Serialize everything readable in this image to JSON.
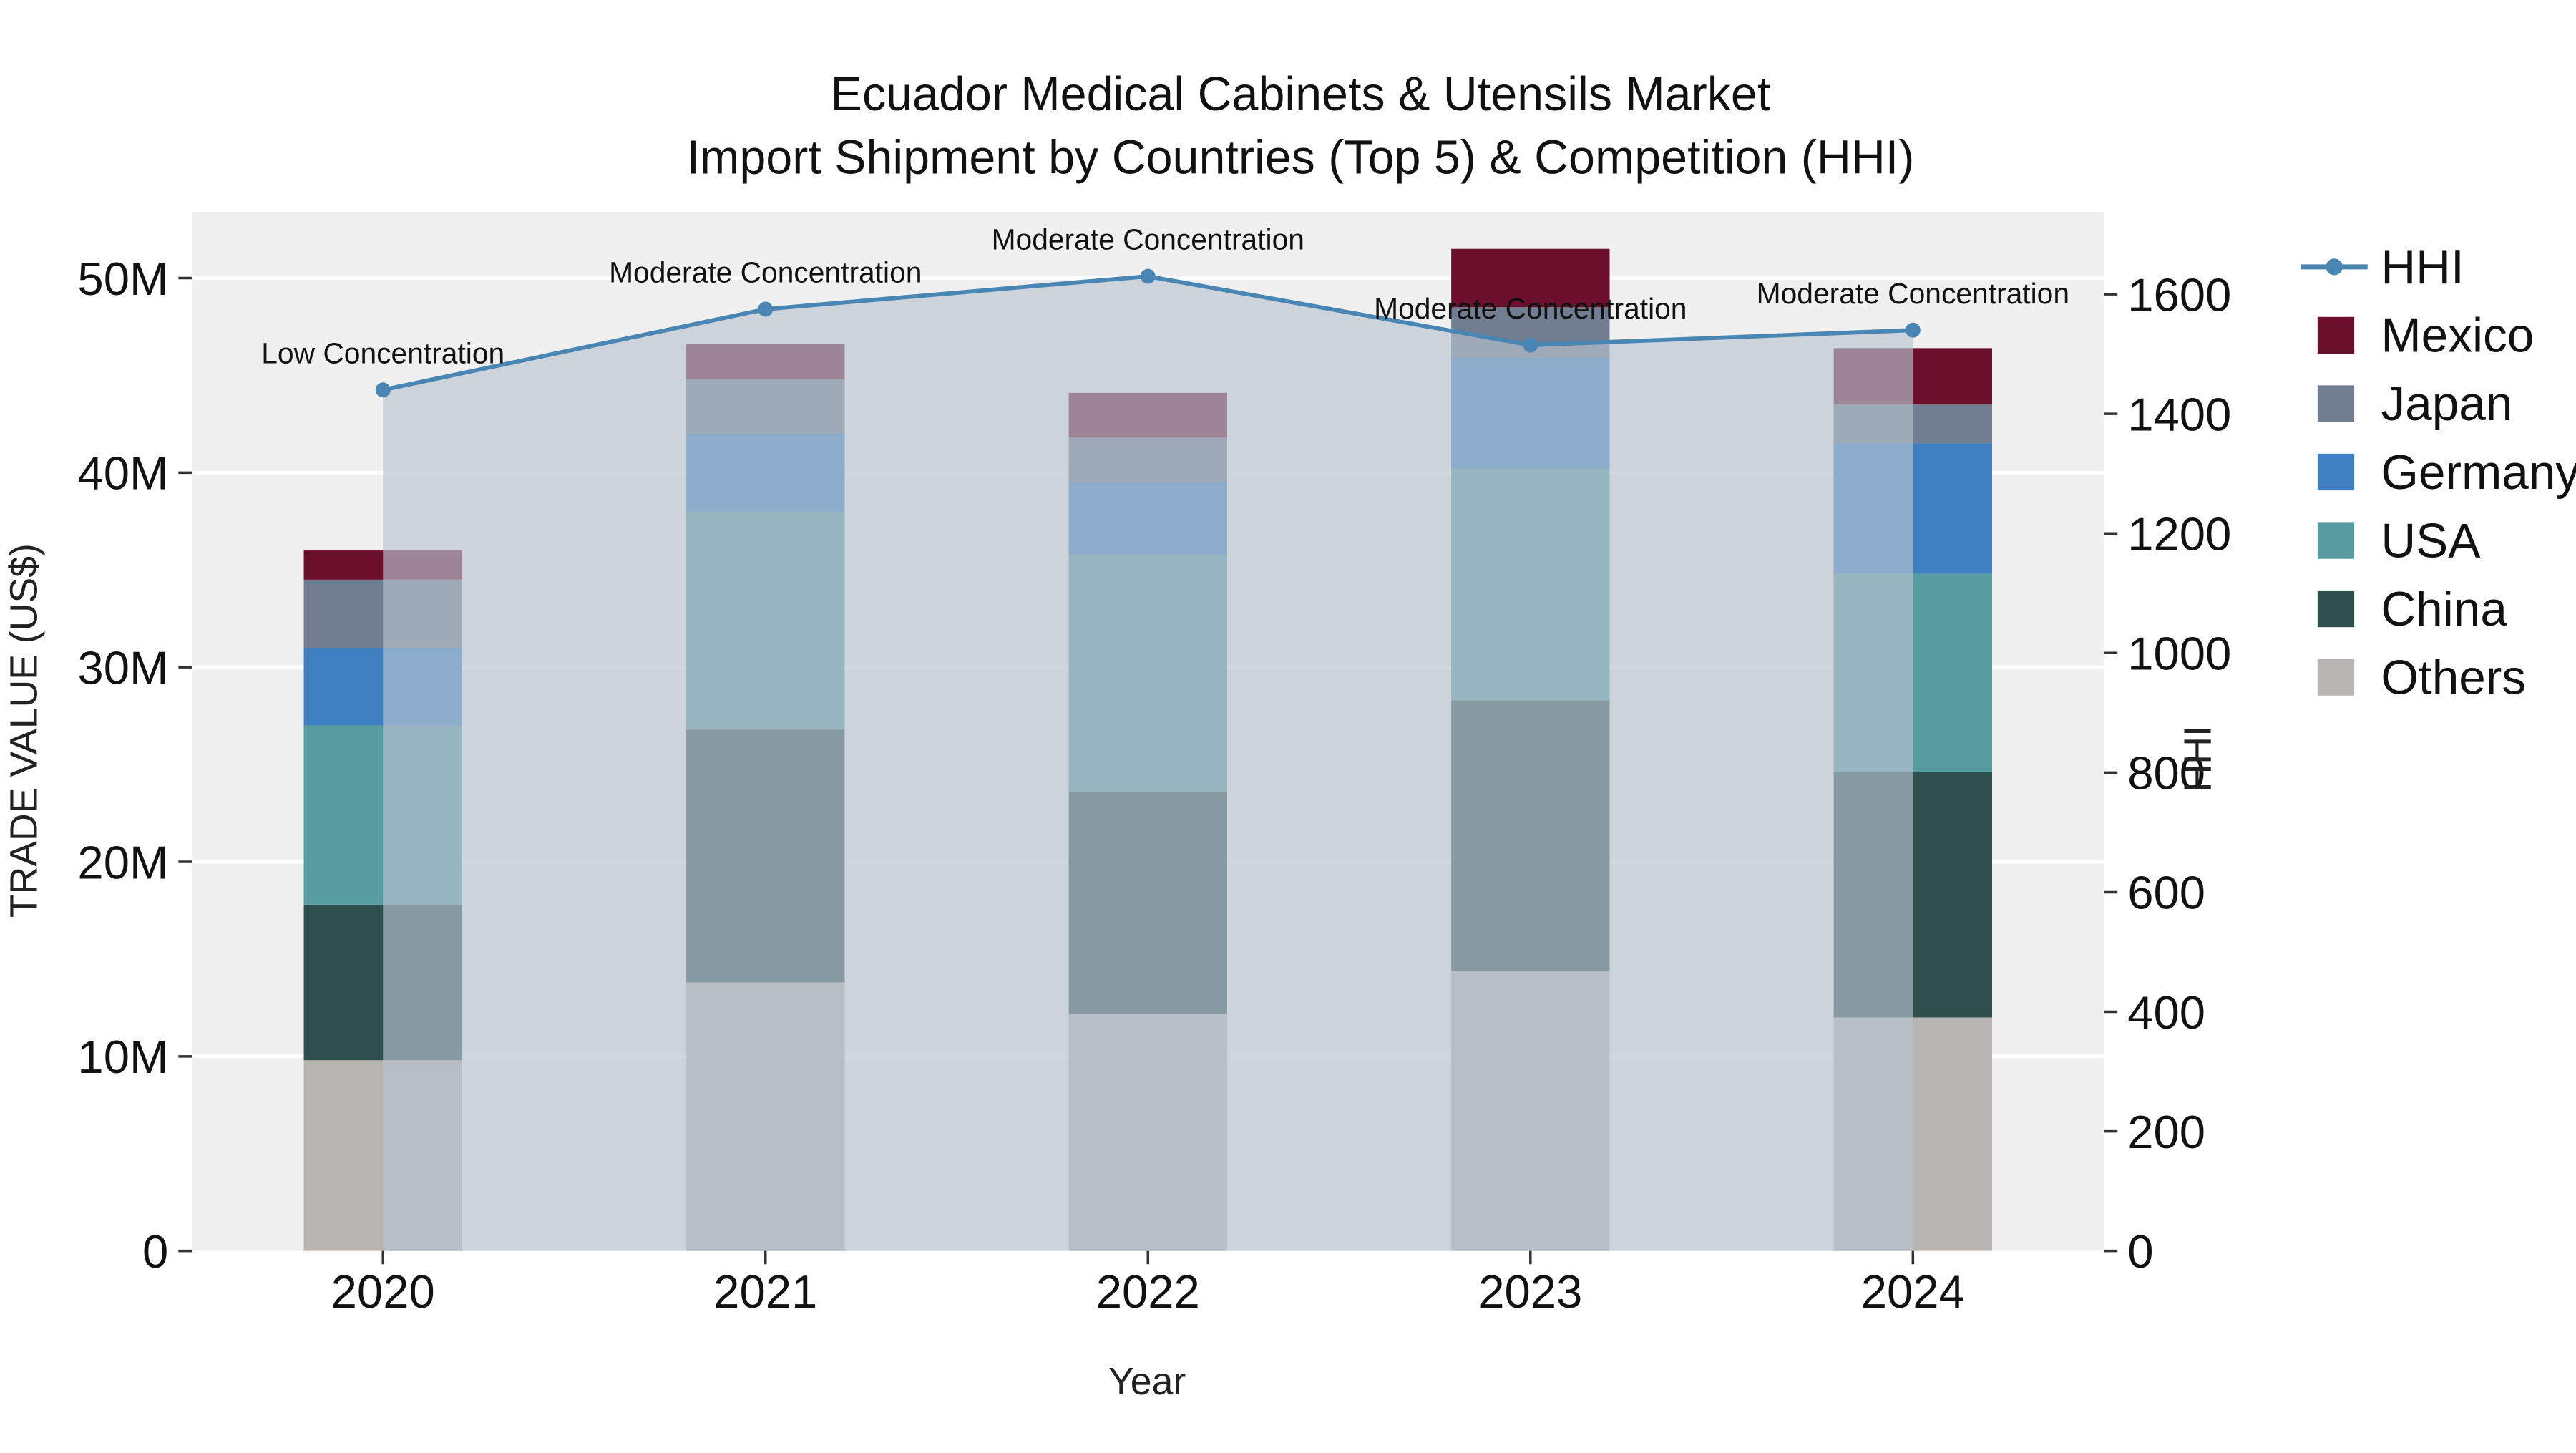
{
  "title": {
    "line1": "Ecuador Medical Cabinets & Utensils Market",
    "line2": "Import Shipment by Countries (Top 5) & Competition (HHI)"
  },
  "chart_data": {
    "type": "bar",
    "subtype": "stacked-bar-with-line",
    "categories": [
      "2020",
      "2021",
      "2022",
      "2023",
      "2024"
    ],
    "bar_series": [
      {
        "name": "Others",
        "color": "#b8b4b2",
        "values": [
          9.8,
          13.8,
          12.2,
          14.4,
          12.0
        ]
      },
      {
        "name": "China",
        "color": "#2d4f4d",
        "values": [
          8.0,
          13.0,
          11.4,
          13.9,
          12.6
        ]
      },
      {
        "name": "USA",
        "color": "#579c9e",
        "values": [
          9.2,
          11.2,
          12.2,
          11.9,
          10.2
        ]
      },
      {
        "name": "Germany",
        "color": "#3e7fc1",
        "values": [
          4.0,
          4.0,
          3.7,
          5.7,
          6.7
        ]
      },
      {
        "name": "Japan",
        "color": "#717d91",
        "values": [
          3.5,
          2.8,
          2.3,
          2.6,
          2.0
        ]
      },
      {
        "name": "Mexico",
        "color": "#6b0f2d",
        "values": [
          1.5,
          1.8,
          2.3,
          3.0,
          2.9
        ]
      }
    ],
    "line_series": {
      "name": "HHI",
      "color": "#4a86b4",
      "area_color": "#b9c3d0",
      "area_opacity": 0.65,
      "values": [
        1440,
        1575,
        1630,
        1515,
        1540
      ]
    },
    "annotations": [
      "Low Concentration",
      "Moderate Concentration",
      "Moderate Concentration",
      "Moderate Concentration",
      "Moderate Concentration"
    ],
    "xlabel": "Year",
    "ylabel_left": "TRADE VALUE (US$)",
    "ylabel_right": "HHI",
    "y_left": {
      "tick_values": [
        0,
        10,
        20,
        30,
        40,
        50
      ],
      "tick_labels": [
        "0",
        "10M",
        "20M",
        "30M",
        "40M",
        "50M"
      ],
      "unit": "M US$"
    },
    "y_right": {
      "tick_values": [
        0,
        200,
        400,
        600,
        800,
        1000,
        1200,
        1400,
        1600
      ]
    },
    "legend_order": [
      "HHI",
      "Mexico",
      "Japan",
      "Germany",
      "USA",
      "China",
      "Others"
    ],
    "plot_bg": "#f0f0f0",
    "grid_color": "#ffffff"
  }
}
